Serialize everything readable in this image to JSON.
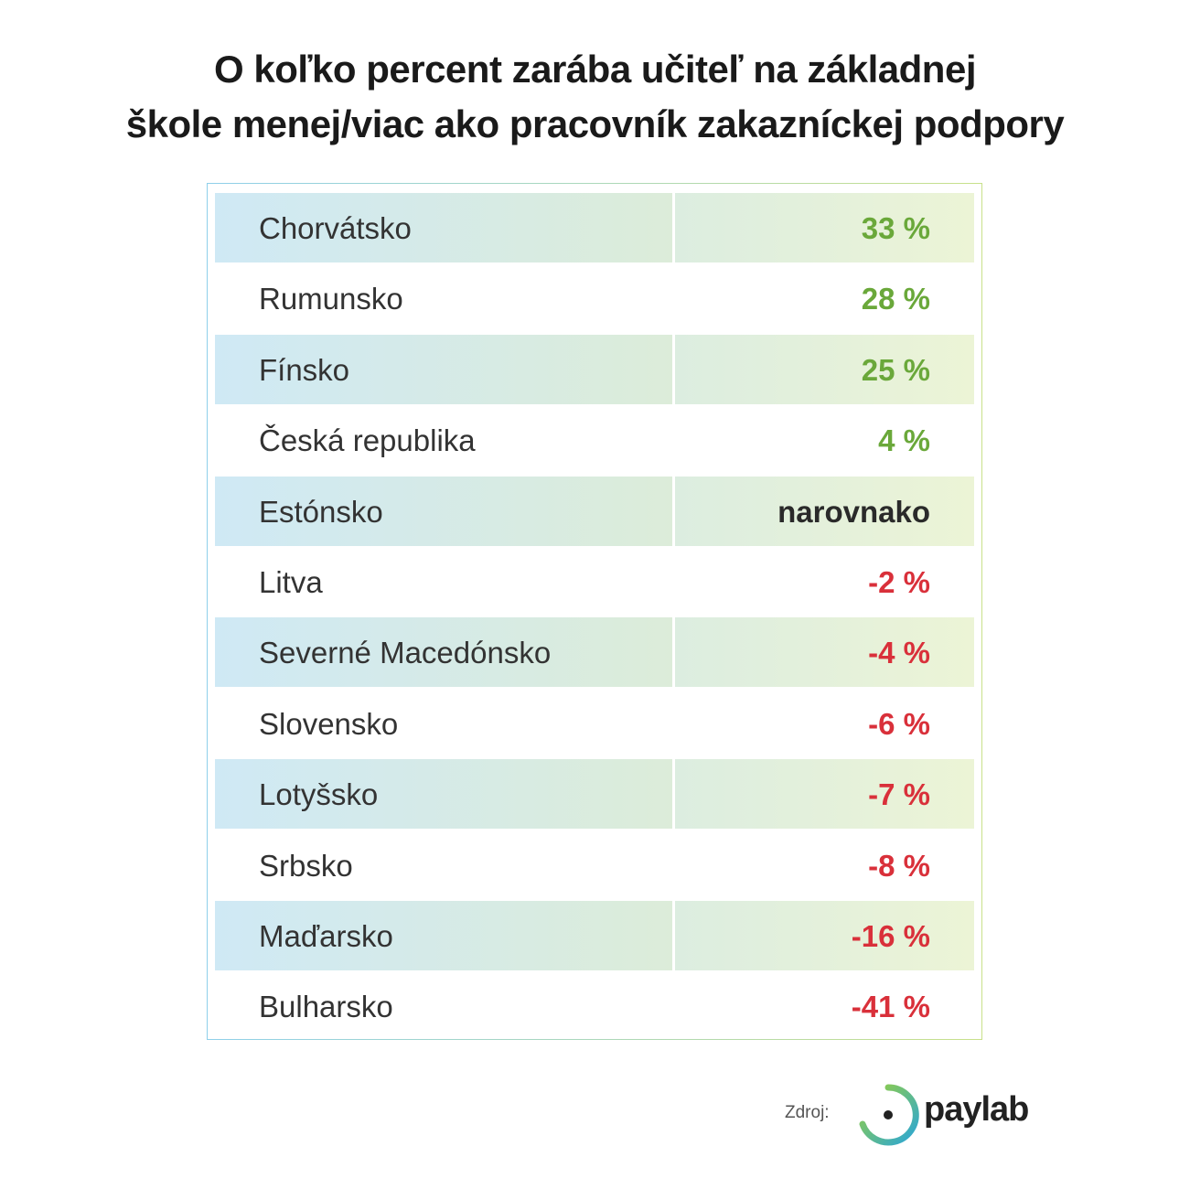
{
  "header": {
    "title": [
      "O koľko percent zarába učiteľ na základnej",
      "škole menej/viac ako pracovník zakazníckej podpory"
    ]
  },
  "table": {
    "rows": [
      [
        "Chorvátsko",
        "33 %"
      ],
      [
        "Rumunsko",
        "28 %"
      ],
      [
        "Fínsko",
        "25 %"
      ],
      [
        "Česká republika",
        "4 %"
      ],
      [
        "Estónsko",
        "narovnako"
      ],
      [
        "Litva",
        "-2 %"
      ],
      [
        "Severné Macedónsko",
        "-4 %"
      ],
      [
        "Slovensko",
        "-6 %"
      ],
      [
        "Lotyšsko",
        "-7 %"
      ],
      [
        "Srbsko",
        "-8 %"
      ],
      [
        "Maďarsko",
        "-16 %"
      ],
      [
        "Bulharsko",
        "-41 %"
      ]
    ]
  },
  "footer": {
    "source_label": "Zdroj:",
    "brand": "paylab"
  }
}
